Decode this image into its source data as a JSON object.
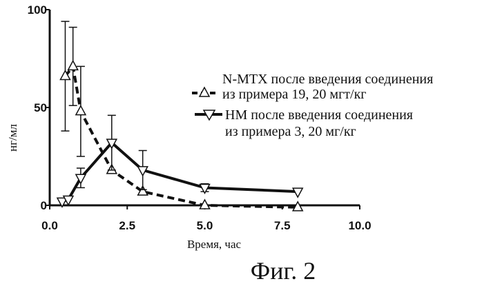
{
  "chart_data": {
    "type": "line",
    "ylabel": "нг/мл",
    "xlabel": "Время, час",
    "xlim": [
      0,
      10
    ],
    "ylim": [
      0,
      100
    ],
    "xticks": [
      "0.0",
      "2.5",
      "5.0",
      "7.5",
      "10.0"
    ],
    "xtick_values": [
      0,
      2.5,
      5,
      7.5,
      10
    ],
    "yticks": [
      "0",
      "50",
      "100"
    ],
    "ytick_values": [
      0,
      50,
      100
    ],
    "grid": false,
    "legend_position": "right",
    "series": [
      {
        "name_line1": "N-MTX после введения соединения",
        "name_line2": "из примера 19, 20 мгт/кг",
        "style": "dashed",
        "marker": "triangle-up",
        "color": "#111111",
        "x": [
          0.5,
          0.75,
          1,
          2,
          3,
          5,
          8
        ],
        "y": [
          66,
          71,
          48,
          18,
          7,
          0,
          -1
        ],
        "err": [
          28,
          20,
          23,
          0,
          0,
          0,
          0
        ]
      },
      {
        "name_line1": "НМ после введения соединения",
        "name_line2": "из примера 3, 20 мг/кг",
        "style": "solid",
        "marker": "triangle-down",
        "color": "#111111",
        "x": [
          0.4,
          0.6,
          1,
          2,
          3,
          5,
          8
        ],
        "y": [
          2,
          3,
          14,
          32,
          18,
          9,
          7
        ],
        "err": [
          0,
          0,
          5,
          14,
          10,
          2,
          0
        ]
      }
    ]
  },
  "caption": "Фиг. 2"
}
